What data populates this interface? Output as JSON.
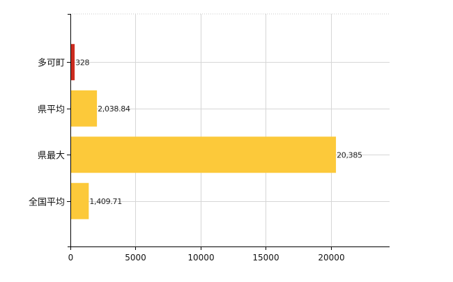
{
  "chart_data": {
    "type": "bar",
    "orientation": "horizontal",
    "categories": [
      "多可町",
      "県平均",
      "県最大",
      "全国平均"
    ],
    "values": [
      328,
      2038.84,
      20385,
      1409.71
    ],
    "value_labels": [
      "328",
      "2,038.84",
      "20,385",
      "1,409.71"
    ],
    "bar_colors": [
      "#cc2b1f",
      "#fcc93a",
      "#fcc93a",
      "#fcc93a"
    ],
    "xlim": [
      0,
      24500
    ],
    "x_ticks": [
      0,
      5000,
      10000,
      15000,
      20000
    ],
    "x_tick_labels": [
      "0",
      "5000",
      "10000",
      "15000",
      "20000"
    ],
    "grid": true,
    "title": "",
    "xlabel": "",
    "ylabel": ""
  }
}
